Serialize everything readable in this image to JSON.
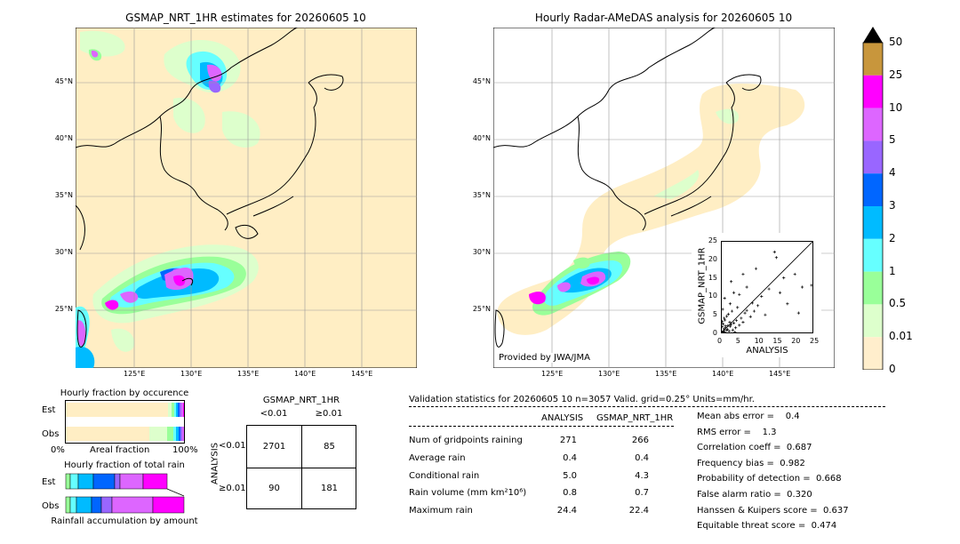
{
  "left_map": {
    "title": "GSMAP_NRT_1HR estimates for 20260605 10",
    "lat_labels": [
      "45°N",
      "40°N",
      "35°N",
      "30°N",
      "25°N"
    ],
    "lon_labels": [
      "125°E",
      "130°E",
      "135°E",
      "140°E",
      "145°E"
    ]
  },
  "right_map": {
    "title": "Hourly Radar-AMeDAS analysis for 20260605 10",
    "lat_labels": [
      "45°N",
      "40°N",
      "35°N",
      "30°N",
      "25°N"
    ],
    "lon_labels": [
      "125°E",
      "130°E",
      "135°E",
      "140°E",
      "145°E"
    ],
    "credit": "Provided by JWA/JMA"
  },
  "colorbar": {
    "labels": [
      "50",
      "25",
      "10",
      "5",
      "4",
      "3",
      "2",
      "1",
      "0.5",
      "0.01",
      "0"
    ],
    "colors": [
      "#c8963c",
      "#ff00ff",
      "#dd66ff",
      "#9966ff",
      "#0066ff",
      "#00bbff",
      "#66ffff",
      "#99ff99",
      "#ddffcc",
      "#ffeecc"
    ]
  },
  "chart_data": [
    {
      "type": "scatter",
      "xlabel": "ANALYSIS",
      "ylabel": "GSMAP_NRT_1HR",
      "xlim": [
        0,
        25
      ],
      "ylim": [
        0,
        25
      ],
      "xticks": [
        "0",
        "5",
        "10",
        "15",
        "20",
        "25"
      ],
      "yticks": [
        "0",
        "5",
        "10",
        "15",
        "20",
        "25"
      ],
      "points": [
        [
          0.2,
          0.5
        ],
        [
          0.5,
          0.3
        ],
        [
          0.8,
          1.2
        ],
        [
          1.0,
          0.4
        ],
        [
          1.2,
          2.0
        ],
        [
          1.5,
          0.8
        ],
        [
          0.3,
          1.8
        ],
        [
          0.6,
          2.5
        ],
        [
          1.8,
          1.1
        ],
        [
          2.2,
          0.6
        ],
        [
          2.5,
          1.9
        ],
        [
          0.4,
          3.2
        ],
        [
          1.1,
          3.6
        ],
        [
          2.8,
          2.4
        ],
        [
          3.2,
          0.9
        ],
        [
          3.5,
          2.8
        ],
        [
          0.9,
          4.1
        ],
        [
          1.6,
          4.6
        ],
        [
          4.0,
          1.5
        ],
        [
          4.2,
          3.5
        ],
        [
          2.0,
          5.2
        ],
        [
          5.0,
          2.2
        ],
        [
          5.5,
          4.1
        ],
        [
          3.0,
          6.0
        ],
        [
          6.0,
          3.0
        ],
        [
          6.5,
          5.5
        ],
        [
          4.5,
          7.0
        ],
        [
          7.0,
          6.2
        ],
        [
          2.5,
          8.0
        ],
        [
          8.0,
          4.5
        ],
        [
          8.5,
          8.2
        ],
        [
          9.0,
          6.0
        ],
        [
          5.0,
          10.5
        ],
        [
          10.0,
          7.5
        ],
        [
          11.0,
          10.0
        ],
        [
          12.0,
          5.0
        ],
        [
          7.0,
          12.5
        ],
        [
          13.0,
          12.0
        ],
        [
          14.5,
          22.0
        ],
        [
          15.0,
          20.5
        ],
        [
          17.0,
          15.0
        ],
        [
          18.0,
          8.0
        ],
        [
          20.0,
          16.0
        ],
        [
          22.0,
          12.5
        ],
        [
          24.5,
          13.0
        ],
        [
          3.5,
          11.0
        ],
        [
          6.0,
          16.0
        ],
        [
          1.0,
          9.5
        ],
        [
          0.5,
          6.5
        ],
        [
          9.5,
          17.5
        ],
        [
          16.0,
          11.0
        ],
        [
          21.0,
          5.5
        ],
        [
          2.8,
          14.0
        ],
        [
          0.1,
          0.1
        ],
        [
          0.3,
          0.2
        ],
        [
          0.7,
          0.6
        ],
        [
          1.3,
          1.5
        ],
        [
          1.9,
          2.1
        ],
        [
          2.4,
          3.0
        ],
        [
          0.2,
          2.9
        ],
        [
          3.8,
          0.3
        ]
      ]
    },
    {
      "type": "bar",
      "title": "Hourly fraction by occurence",
      "categories": [
        "Est",
        "Obs"
      ],
      "xlabel": "Areal fraction",
      "xtick_left": "0%",
      "xtick_right": "100%"
    },
    {
      "type": "bar",
      "title": "Hourly fraction of total rain",
      "categories": [
        "Est",
        "Obs"
      ],
      "xlabel": "Rainfall accumulation by amount"
    },
    {
      "type": "table",
      "title": "GSMAP_NRT_1HR",
      "col_headers": [
        "<0.01",
        "≥0.01"
      ],
      "row_axis": "ANALYSIS",
      "row_headers": [
        "<0.01",
        "≥0.01"
      ],
      "cells": [
        [
          "2701",
          "85"
        ],
        [
          "90",
          "181"
        ]
      ]
    }
  ],
  "validation": {
    "header": "Validation statistics for 20260605 10  n=3057 Valid. grid=0.25° Units=mm/hr.",
    "col_analysis": "ANALYSIS",
    "col_gsmap": "GSMAP_NRT_1HR",
    "rows": [
      {
        "label": "Num of gridpoints raining",
        "a": "271",
        "g": "266"
      },
      {
        "label": "Average rain",
        "a": "0.4",
        "g": "0.4"
      },
      {
        "label": "Conditional rain",
        "a": "5.0",
        "g": "4.3"
      },
      {
        "label": "Rain volume (mm km²10⁶)",
        "a": "0.8",
        "g": "0.7"
      },
      {
        "label": "Maximum rain",
        "a": "24.4",
        "g": "22.4"
      }
    ],
    "scores": [
      "Mean abs error =    0.4",
      "RMS error =    1.3",
      "Correlation coeff =  0.687",
      "Frequency bias =  0.982",
      "Probability of detection =  0.668",
      "False alarm ratio =  0.320",
      "Hanssen & Kuipers score =  0.637",
      "Equitable threat score =  0.474"
    ]
  }
}
